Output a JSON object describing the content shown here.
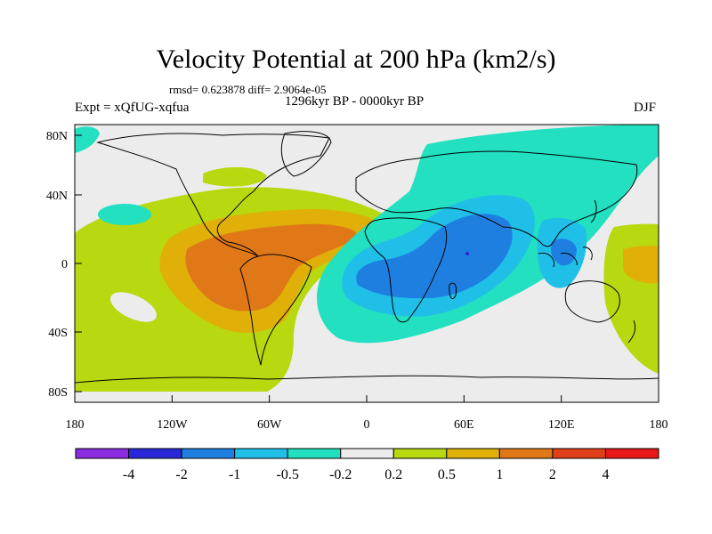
{
  "title": "Velocity Potential at 200 hPa (km2/s)",
  "stats": "rmsd= 0.623878 diff= 2.9064e-05",
  "period": "1296kyr BP - 0000kyr BP",
  "experiment": "Expt = xQfUG-xqfua",
  "season": "DJF",
  "lat_labels": [
    "80N",
    "40N",
    "0",
    "40S",
    "80S"
  ],
  "lon_labels": [
    "180",
    "120W",
    "60W",
    "0",
    "60E",
    "120E",
    "180"
  ],
  "colorbar": {
    "labels": [
      "-4",
      "-2",
      "-1",
      "-0.5",
      "-0.2",
      "0.2",
      "0.5",
      "1",
      "2",
      "4"
    ],
    "colors": [
      "#8a2be2",
      "#2828d8",
      "#1e7fe0",
      "#1fbfe8",
      "#22e0c0",
      "#ececec",
      "#b8d810",
      "#e0b008",
      "#e07818",
      "#e04018",
      "#e81818"
    ]
  },
  "palette": {
    "ocean_neutral": "#ececec",
    "pos_light": "#b8d810",
    "pos_mid": "#e0b008",
    "pos_strong": "#e07818",
    "neg_light": "#22e0c0",
    "neg_mid": "#1fbfe8",
    "neg_strong": "#1e7fe0",
    "neg_max": "#2828d8"
  }
}
